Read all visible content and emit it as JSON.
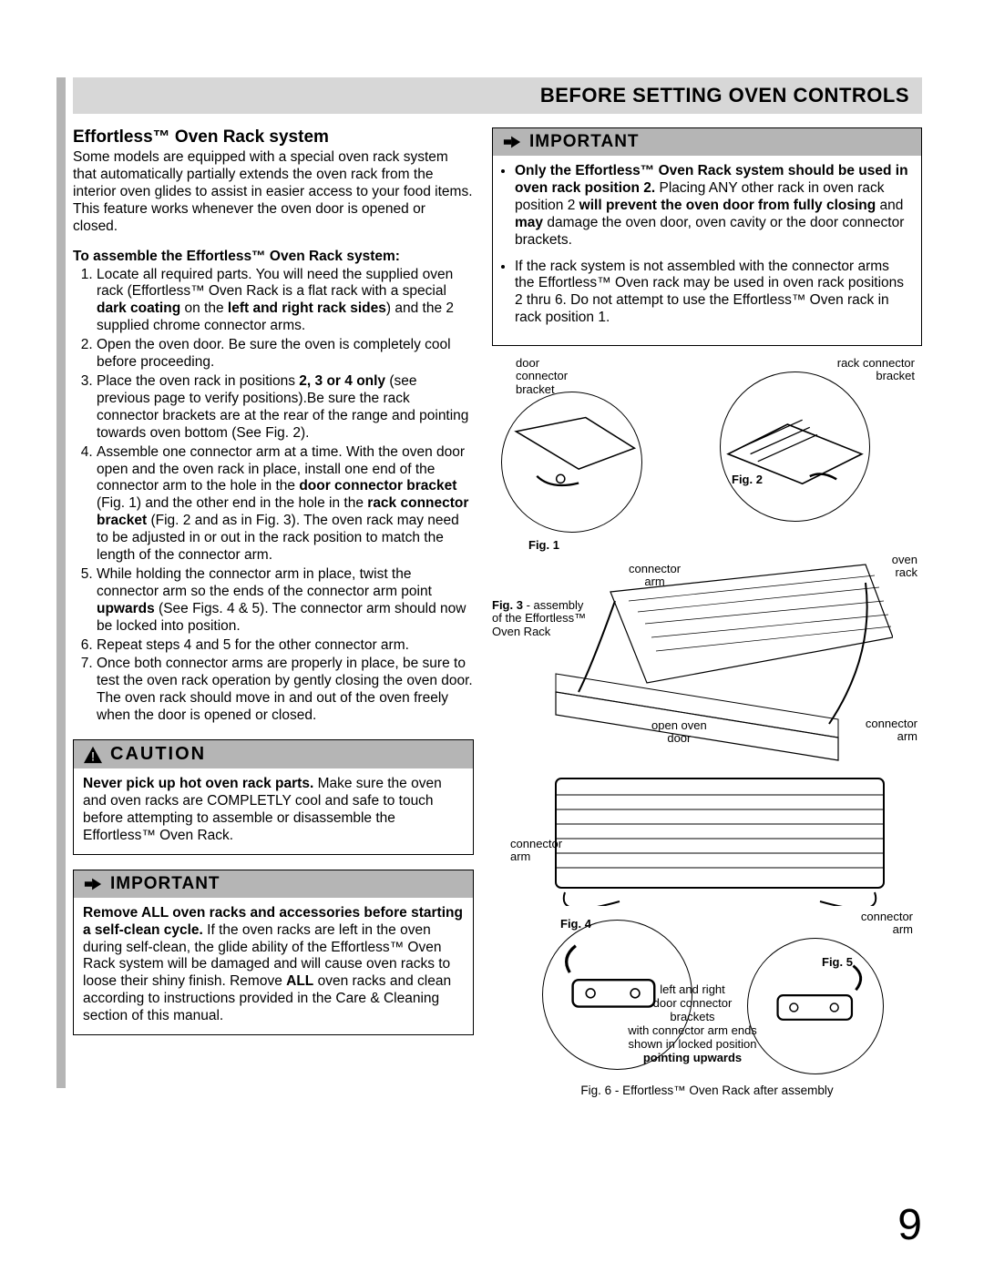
{
  "header": {
    "title": "BEFORE SETTING OVEN CONTROLS"
  },
  "left": {
    "section_title": "Effortless™ Oven Rack system",
    "intro": "Some models are equipped with a special oven rack system that automatically partially extends the oven rack from the interior oven glides to assist in easier access to your food items. This feature works whenever the oven door is opened or closed.",
    "assemble_heading": "To assemble the Effortless™ Oven Rack system:",
    "steps": [
      "Locate all required parts. You will need the supplied oven rack (Effortless™ Oven Rack is a flat rack with a special <b>dark coating</b> on the <b>left and right rack sides</b>) and the 2 supplied chrome connector arms.",
      "Open the oven door. Be sure the oven is completely cool before proceeding.",
      "Place the oven rack in positions <b>2, 3 or 4 only</b> (see previous page to verify positions).Be sure the rack connector brackets are at the rear of the range and pointing towards oven bottom (See Fig. 2).",
      "Assemble one connector arm at a time. With the oven door open and the oven rack in place, install one end of the connector arm to the hole in the <b>door connector bracket</b> (Fig. 1) and the other end in the hole in the <b>rack connector bracket</b> (Fig. 2 and as in Fig. 3). The oven rack may need to be adjusted in or out in the rack position to match the length of the connector arm.",
      "While holding the connector arm in place, twist the connector arm so the ends of the connector arm point <b>upwards</b> (See Figs. 4 & 5). The connector arm should now be locked into position.",
      "Repeat steps 4 and 5 for the other connector arm.",
      "Once both connector arms are properly in place, be sure to test the oven rack operation by gently closing the oven door. The oven rack should move in and out of the oven freely when the door is opened or closed."
    ],
    "caution": {
      "label": "CAUTION",
      "body": "<b>Never pick up hot oven rack parts.</b> Make sure the oven and oven racks are COMPLETLY cool and safe to touch before attempting to assemble or disassemble the Effortless™ Oven Rack."
    },
    "important": {
      "label": "IMPORTANT",
      "body": "<b>Remove ALL oven racks and accessories before starting a self-clean cycle.</b> If the oven racks are left in the oven during self-clean, the glide ability of the Effortless™ Oven Rack system will be damaged and will cause oven racks to loose their shiny finish. Remove <b>ALL</b> oven racks and clean according to instructions provided in the Care & Cleaning section of this manual."
    }
  },
  "right": {
    "important": {
      "label": "IMPORTANT",
      "bullets": [
        "<b>Only the Effortless™ Oven Rack system should be used in oven rack position 2.</b> Placing ANY other rack in oven rack position 2 <b>will prevent the oven door from fully closing</b> and <b>may</b> damage the oven door, oven cavity or the door connector brackets.",
        "If the rack system is not assembled with the connector arms the Effortless™ Oven rack may be used in oven rack positions 2 thru 6. Do not attempt to use the Effortless™ Oven rack in rack position 1."
      ]
    },
    "diagram": {
      "labels": {
        "door_connector_bracket": "door\nconnector\nbracket",
        "rack_connector_bracket": "rack connector\nbracket",
        "fig1": "Fig. 1",
        "fig2": "Fig. 2",
        "fig3": "Fig. 3 - assembly\nof the Effortless™\nOven Rack",
        "connector_arm_top": "connector\narm",
        "oven_rack": "oven\nrack",
        "open_oven_door": "open oven\ndoor",
        "connector_arm_right": "connector\narm",
        "connector_arm_left": "connector\narm",
        "fig4": "Fig. 4",
        "fig5": "Fig. 5",
        "connector_arm_br": "connector\narm",
        "locked_note": "left and right\ndoor connector\nbrackets\nwith connector arm ends\nshown in locked  position\npointing upwards"
      },
      "caption": "Fig. 6 - Effortless™ Oven Rack after assembly"
    }
  },
  "page_number": "9",
  "colors": {
    "gray_band": "#d7d7d7",
    "gray_bar": "#b5b5b5",
    "black": "#000000",
    "white": "#ffffff"
  }
}
